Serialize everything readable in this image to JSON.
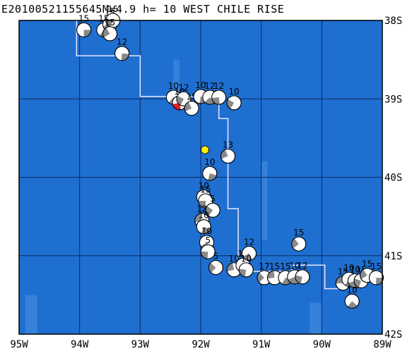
{
  "title": "E20100521155645M=4.9 h= 10 WEST CHILE RISE",
  "map": {
    "lon_range": [
      -95,
      -89
    ],
    "lat_range": [
      -42,
      -38
    ],
    "ocean_color": "#1e6fd0",
    "grid_color": "#0b2a63",
    "ridge_color": "#e8e8ff",
    "x_ticks": [
      "95W",
      "94W",
      "93W",
      "92W",
      "91W",
      "90W",
      "89W"
    ],
    "y_ticks": [
      "38S",
      "39S",
      "40S",
      "41S",
      "42S"
    ],
    "highlight_event_color": "#e02020",
    "epicenter_marker_color": "#ffee00",
    "epicenter": {
      "lon": -91.93,
      "lat": -39.65
    },
    "ridge_line": [
      [
        -94.05,
        -38.0
      ],
      [
        -94.05,
        -38.45
      ],
      [
        -93.0,
        -38.45
      ],
      [
        -93.0,
        -38.97
      ],
      [
        -91.7,
        -38.97
      ],
      [
        -91.7,
        -39.25
      ],
      [
        -91.55,
        -39.25
      ],
      [
        -91.55,
        -40.4
      ],
      [
        -91.38,
        -40.4
      ],
      [
        -91.38,
        -41.2
      ],
      [
        -90.5,
        -41.2
      ],
      [
        -90.5,
        -41.12
      ],
      [
        -89.95,
        -41.12
      ],
      [
        -89.95,
        -41.42
      ],
      [
        -89.6,
        -41.42
      ],
      [
        -89.6,
        -41.32
      ]
    ]
  },
  "events": [
    {
      "lon": -93.93,
      "lat": -38.12,
      "mag": "15"
    },
    {
      "lon": -93.6,
      "lat": -38.12,
      "mag": "15"
    },
    {
      "lon": -93.5,
      "lat": -38.05,
      "mag": "15"
    },
    {
      "lon": -93.45,
      "lat": -38.0,
      "mag": "15"
    },
    {
      "lon": -93.5,
      "lat": -38.17,
      "mag": "15"
    },
    {
      "lon": -93.3,
      "lat": -38.42,
      "mag": "12"
    },
    {
      "lon": -92.45,
      "lat": -38.98,
      "mag": "10"
    },
    {
      "lon": -92.35,
      "lat": -39.05,
      "mag": "10",
      "hl": true
    },
    {
      "lon": -92.28,
      "lat": -39.0,
      "mag": "12"
    },
    {
      "lon": -92.15,
      "lat": -39.12,
      "mag": "15"
    },
    {
      "lon": -92.0,
      "lat": -38.97,
      "mag": "10"
    },
    {
      "lon": -91.85,
      "lat": -38.98,
      "mag": "12"
    },
    {
      "lon": -91.7,
      "lat": -38.98,
      "mag": "12"
    },
    {
      "lon": -91.45,
      "lat": -39.05,
      "mag": "10"
    },
    {
      "lon": -91.55,
      "lat": -39.73,
      "mag": "13"
    },
    {
      "lon": -91.85,
      "lat": -39.95,
      "mag": "10"
    },
    {
      "lon": -91.95,
      "lat": -40.25,
      "mag": "10"
    },
    {
      "lon": -91.92,
      "lat": -40.3,
      "mag": "15"
    },
    {
      "lon": -91.8,
      "lat": -40.42,
      "mag": "5"
    },
    {
      "lon": -91.98,
      "lat": -40.55,
      "mag": "12"
    },
    {
      "lon": -91.95,
      "lat": -40.63,
      "mag": "10"
    },
    {
      "lon": -91.9,
      "lat": -40.83,
      "mag": "10"
    },
    {
      "lon": -91.88,
      "lat": -40.95,
      "mag": "5"
    },
    {
      "lon": -91.75,
      "lat": -41.15,
      "mag": "5"
    },
    {
      "lon": -91.45,
      "lat": -41.18,
      "mag": "10"
    },
    {
      "lon": -91.3,
      "lat": -41.12,
      "mag": "14"
    },
    {
      "lon": -91.2,
      "lat": -40.97,
      "mag": "12"
    },
    {
      "lon": -91.25,
      "lat": -41.18,
      "mag": "10"
    },
    {
      "lon": -90.95,
      "lat": -41.28,
      "mag": "17"
    },
    {
      "lon": -90.78,
      "lat": -41.28,
      "mag": "15"
    },
    {
      "lon": -90.6,
      "lat": -41.28,
      "mag": "15"
    },
    {
      "lon": -90.45,
      "lat": -41.27,
      "mag": "10"
    },
    {
      "lon": -90.32,
      "lat": -41.27,
      "mag": "12"
    },
    {
      "lon": -90.38,
      "lat": -40.85,
      "mag": "15"
    },
    {
      "lon": -89.65,
      "lat": -41.35,
      "mag": "15"
    },
    {
      "lon": -89.55,
      "lat": -41.3,
      "mag": "10"
    },
    {
      "lon": -89.45,
      "lat": -41.32,
      "mag": "10"
    },
    {
      "lon": -89.35,
      "lat": -41.32,
      "mag": "15"
    },
    {
      "lon": -89.25,
      "lat": -41.25,
      "mag": "15"
    },
    {
      "lon": -89.1,
      "lat": -41.28,
      "mag": "15"
    },
    {
      "lon": -89.5,
      "lat": -41.58,
      "mag": "10"
    }
  ]
}
